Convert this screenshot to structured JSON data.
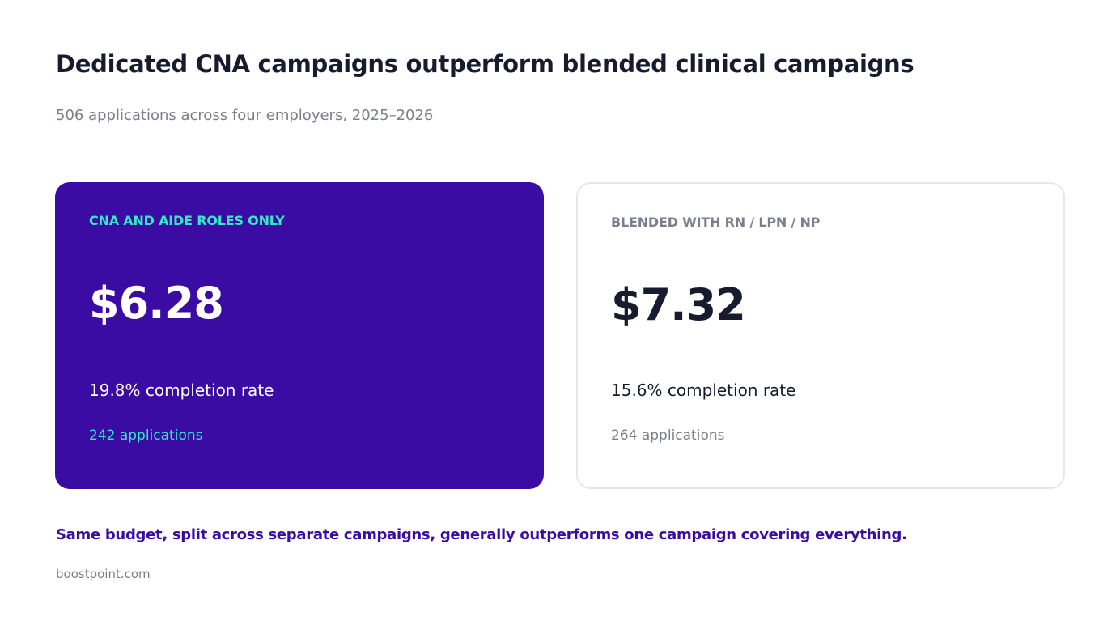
{
  "header": {
    "title": "Dedicated CNA campaigns outperform blended clinical campaigns",
    "subtitle": "506 applications across four employers, 2025–2026"
  },
  "cards": [
    {
      "label": "CNA AND AIDE ROLES ONLY",
      "value": "$6.28",
      "rate": "19.8% completion rate",
      "applications": "242 applications",
      "background": "#3a0ca3",
      "accent": "#34e8c8"
    },
    {
      "label": "BLENDED WITH RN / LPN / NP",
      "value": "$7.32",
      "rate": "15.6% completion rate",
      "applications": "264 applications",
      "background": "#ffffff",
      "accent": "#7b7f8c"
    }
  ],
  "takeaway": "Same budget, split across separate campaigns, generally outperforms one campaign covering everything.",
  "footer": {
    "source": "boostpoint.com"
  }
}
